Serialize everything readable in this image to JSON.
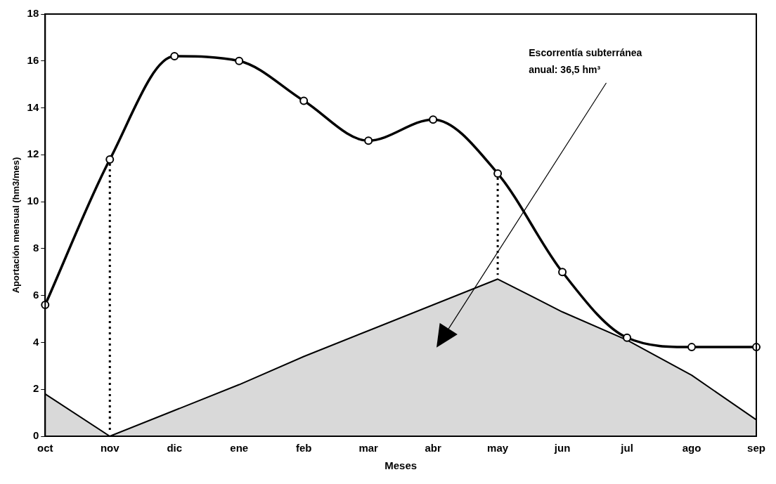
{
  "chart_data": {
    "type": "line",
    "xlabel": "Meses",
    "ylabel": "Aportación mensual (hm3/mes)",
    "categories": [
      "oct",
      "nov",
      "dic",
      "ene",
      "feb",
      "mar",
      "abr",
      "may",
      "jun",
      "jul",
      "ago",
      "sep"
    ],
    "series": [
      {
        "type": "area",
        "color": "#000000",
        "values": [
          1.8,
          0,
          1.1,
          2.2,
          3.4,
          4.5,
          5.6,
          6.7,
          5.3,
          4.1,
          2.6,
          0.7
        ],
        "marker": "none"
      },
      {
        "type": "line",
        "color": "#000000",
        "values": [
          5.6,
          11.8,
          16.2,
          16.0,
          14.3,
          12.6,
          13.5,
          11.2,
          7.0,
          4.2,
          3.8,
          3.8
        ],
        "marker": "circle"
      }
    ],
    "ylim": [
      0,
      18
    ],
    "yticks": [
      0,
      2,
      4,
      6,
      8,
      10,
      12,
      14,
      16,
      18
    ],
    "grid": false,
    "legend": false,
    "ref_lines": [
      {
        "axis": "x",
        "value": "nov",
        "line_style": "dotted"
      },
      {
        "axis": "x",
        "value": "may",
        "line_style": "dotted"
      }
    ],
    "annotations": [
      "Escorrentía subterránea anual: 36,5 hm³"
    ]
  }
}
